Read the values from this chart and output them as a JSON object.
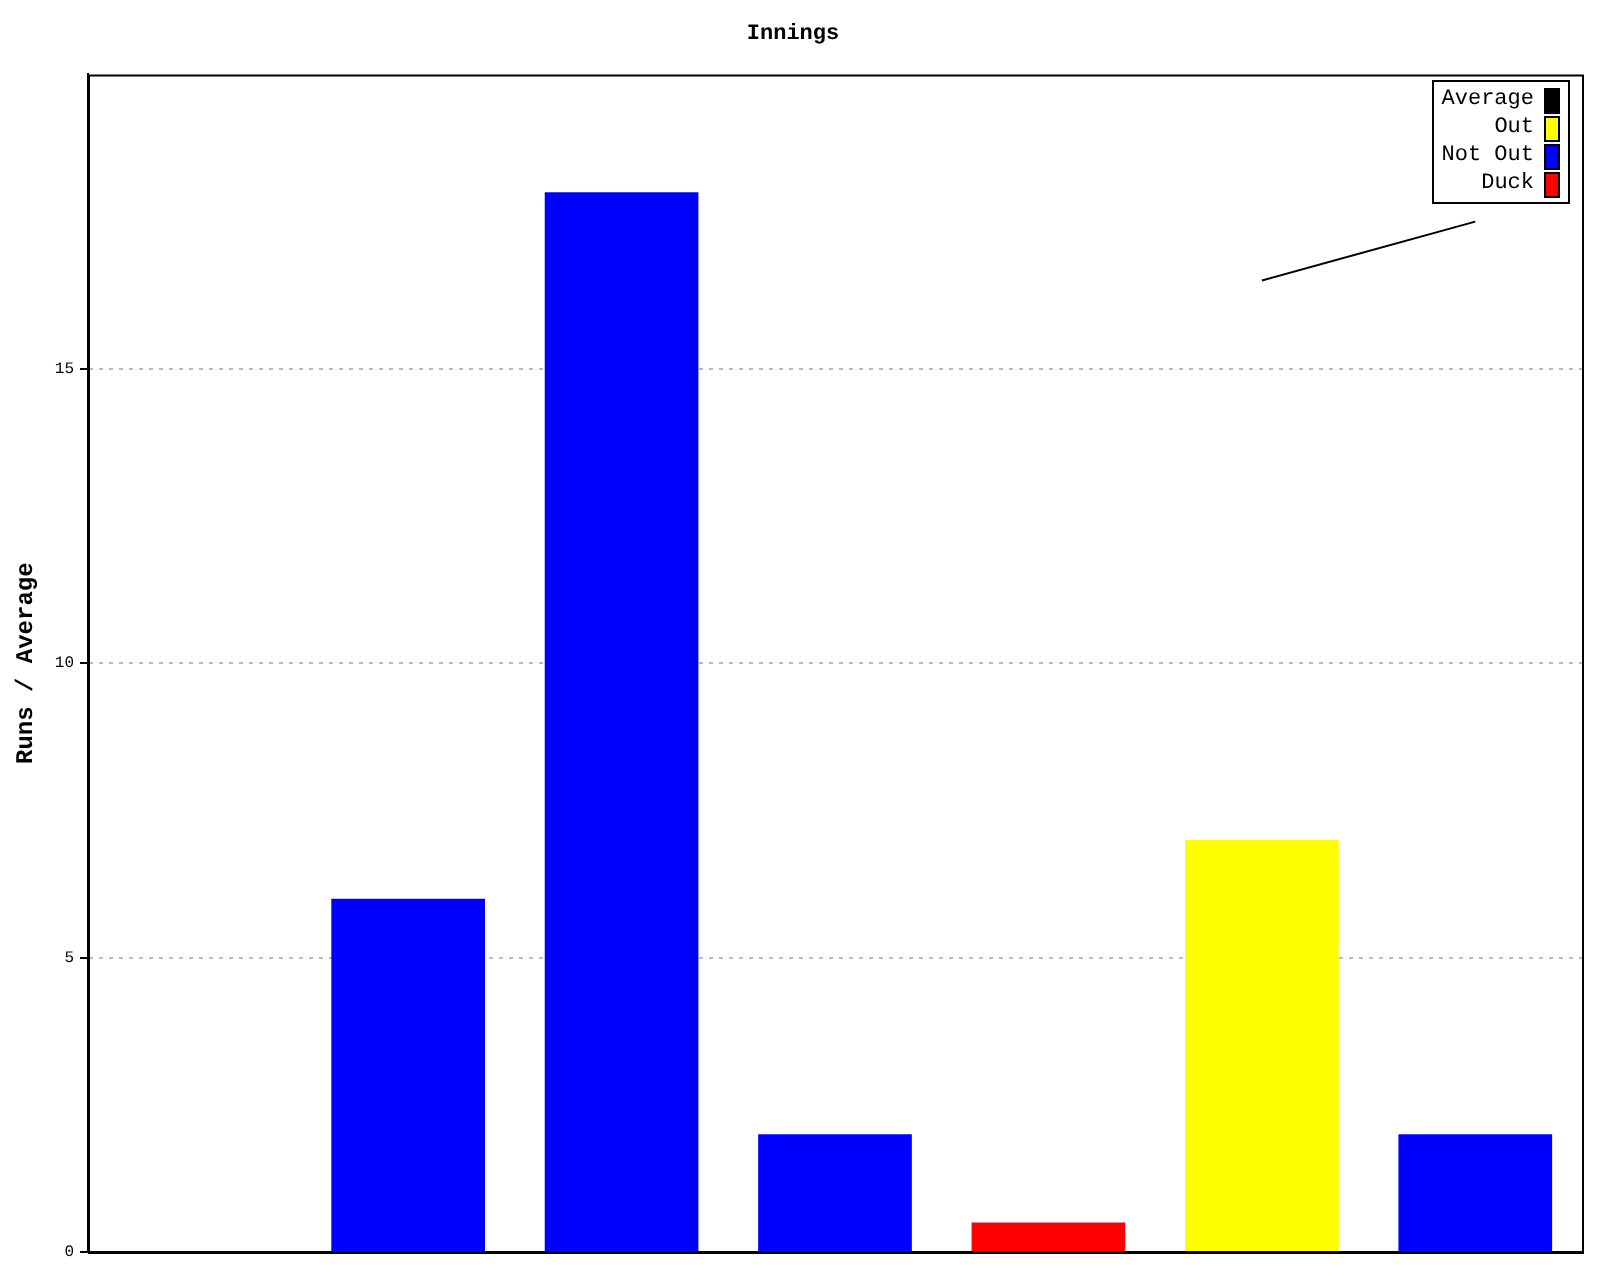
{
  "chart_data": {
    "type": "bar",
    "title": "Innings",
    "ylabel": "Runs / Average",
    "categories": [
      null,
      null,
      null,
      null,
      null,
      null,
      null
    ],
    "stacked": true,
    "tick_labels": "y",
    "ylim": [
      0,
      20
    ],
    "yticks": [
      0,
      5,
      10,
      15
    ],
    "grid": "y",
    "legend": "top right",
    "series": [
      {
        "name": "Average",
        "type": "line",
        "color": "#000000",
        "marker": "none",
        "values": [
          null,
          null,
          null,
          null,
          null,
          16.5,
          17.5
        ]
      },
      {
        "name": "Out",
        "color": "#ffff00",
        "values": [
          null,
          null,
          null,
          null,
          null,
          7,
          null
        ]
      },
      {
        "name": "Not Out",
        "color": "#0000ff",
        "values": [
          0,
          6,
          18,
          2,
          null,
          null,
          2
        ]
      },
      {
        "name": "Duck",
        "color": "#ff0000",
        "values": [
          null,
          null,
          null,
          null,
          0.5,
          null,
          null
        ]
      }
    ]
  }
}
